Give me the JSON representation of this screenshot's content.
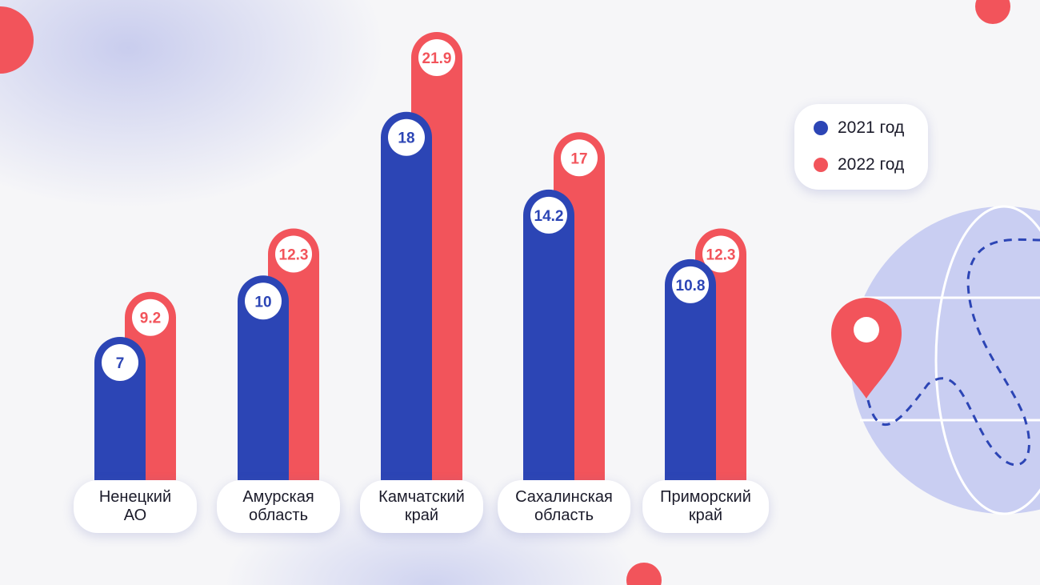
{
  "chart_data": {
    "type": "bar",
    "categories": [
      "Ненецкий АО",
      "Амурская область",
      "Камчатский край",
      "Сахалинская область",
      "Приморский край"
    ],
    "series": [
      {
        "name": "2021 год",
        "color": "#2c45b5",
        "values": [
          7,
          10,
          18,
          14.2,
          10.8
        ]
      },
      {
        "name": "2022 год",
        "color": "#f2545b",
        "values": [
          9.2,
          12.3,
          21.9,
          17,
          12.3
        ]
      }
    ]
  }
}
